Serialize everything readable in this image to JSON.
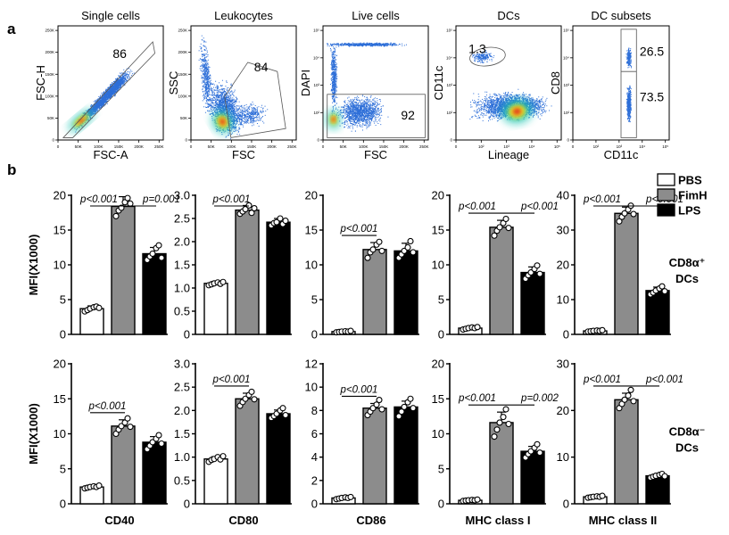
{
  "figure": {
    "panel_a_label": "a",
    "panel_b_label": "b"
  },
  "flow_panels": [
    {
      "title": "Single cells",
      "xlabel": "FSC-A",
      "ylabel": "FSC-H",
      "xscale": "linear",
      "yscale": "linear",
      "gate_value": "86",
      "x_ticks": [
        "0",
        "50K",
        "100K",
        "150K",
        "200K",
        "250K"
      ],
      "y_ticks": [
        "0",
        "50K",
        "100K",
        "150K",
        "200K",
        "250K"
      ],
      "population_color": "#2e6fd8"
    },
    {
      "title": "Leukocytes",
      "xlabel": "FSC",
      "ylabel": "SSC",
      "xscale": "linear",
      "yscale": "linear",
      "gate_value": "84",
      "x_ticks": [
        "0",
        "50K",
        "100K",
        "150K",
        "200K",
        "250K"
      ],
      "y_ticks": [
        "0",
        "50K",
        "100K",
        "150K",
        "200K",
        "250K"
      ],
      "population_color": "#2e6fd8"
    },
    {
      "title": "Live cells",
      "xlabel": "FSC",
      "ylabel": "DAPI",
      "xscale": "linear",
      "yscale": "log",
      "gate_value": "92",
      "x_ticks": [
        "0",
        "50K",
        "100K",
        "150K",
        "200K",
        "250K"
      ],
      "y_ticks": [
        "0",
        "10²",
        "10³",
        "10⁴",
        "10⁵"
      ],
      "population_color": "#2e6fd8"
    },
    {
      "title": "DCs",
      "xlabel": "Lineage",
      "ylabel": "CD11c",
      "xscale": "log",
      "yscale": "log",
      "gate_value": "1.3",
      "x_ticks": [
        "0",
        "10²",
        "10³",
        "10⁴",
        "10⁵"
      ],
      "y_ticks": [
        "0",
        "10²",
        "10³",
        "10⁴",
        "10⁵"
      ],
      "population_color": "#2e6fd8"
    },
    {
      "title": "DC subsets",
      "xlabel": "CD11c",
      "ylabel": "CD8",
      "xscale": "log",
      "yscale": "log",
      "gate_values": [
        "26.5",
        "73.5"
      ],
      "x_ticks": [
        "0",
        "10²",
        "10³",
        "10⁴",
        "10⁵"
      ],
      "y_ticks": [
        "0",
        "10²",
        "10³",
        "10⁴",
        "10⁵"
      ],
      "population_color": "#2e6fd8"
    }
  ],
  "legend": {
    "entries": [
      {
        "name": "PBS",
        "color": "#ffffff"
      },
      {
        "name": "FimH",
        "color": "#8c8c8c"
      },
      {
        "name": "LPS",
        "color": "#000000"
      }
    ],
    "placement": "top-right"
  },
  "chart_data": [
    {
      "type": "bar",
      "row": 1,
      "xlabel": "",
      "ylabel": "MFI(X1000)",
      "ylim": [
        0,
        20
      ],
      "yticks": [
        "0",
        "5",
        "10",
        "15",
        "20"
      ],
      "categories": [
        "PBS",
        "FimH",
        "LPS"
      ],
      "values": [
        3.7,
        18.4,
        11.6
      ],
      "errors": [
        0.4,
        1.4,
        0.9
      ],
      "replicates": [
        [
          3.3,
          3.5,
          3.7,
          3.9,
          4.0,
          3.8
        ],
        [
          17.0,
          17.8,
          18.2,
          19.0,
          19.6,
          18.8
        ],
        [
          10.7,
          11.2,
          11.6,
          12.4,
          12.8,
          11.0
        ]
      ],
      "annotations": [
        {
          "from": 0,
          "to": 1,
          "text": "p<0.001"
        },
        {
          "from": 1,
          "to": 2,
          "text": "p=0.001"
        }
      ]
    },
    {
      "type": "bar",
      "row": 1,
      "xlabel": "",
      "ylabel": "",
      "ylim": [
        0,
        3.0
      ],
      "yticks": [
        "0",
        "0.5",
        "1.0",
        "1.5",
        "2.0",
        "2.5",
        "3.0"
      ],
      "categories": [
        "PBS",
        "FimH",
        "LPS"
      ],
      "values": [
        1.1,
        2.68,
        2.42
      ],
      "errors": [
        0.04,
        0.1,
        0.08
      ],
      "replicates": [
        [
          1.06,
          1.08,
          1.1,
          1.12,
          1.09,
          1.13
        ],
        [
          2.6,
          2.65,
          2.7,
          2.78,
          2.62,
          2.72
        ],
        [
          2.35,
          2.4,
          2.42,
          2.5,
          2.38,
          2.45
        ]
      ],
      "annotations": [
        {
          "from": 0,
          "to": 1,
          "text": "p<0.001"
        }
      ]
    },
    {
      "type": "bar",
      "row": 1,
      "xlabel": "",
      "ylabel": "",
      "ylim": [
        0,
        20
      ],
      "yticks": [
        "0",
        "5",
        "10",
        "15",
        "20"
      ],
      "categories": [
        "PBS",
        "FimH",
        "LPS"
      ],
      "values": [
        0.4,
        12.2,
        12.0
      ],
      "errors": [
        0.1,
        1.0,
        1.1
      ],
      "replicates": [
        [
          0.3,
          0.35,
          0.4,
          0.45,
          0.4,
          0.5
        ],
        [
          11.0,
          11.8,
          12.2,
          12.9,
          13.3,
          12.0
        ],
        [
          11.0,
          11.5,
          12.0,
          12.5,
          13.4,
          11.8
        ]
      ],
      "annotations": [
        {
          "from": 0,
          "to": 1,
          "text": "p<0.001"
        }
      ]
    },
    {
      "type": "bar",
      "row": 1,
      "xlabel": "",
      "ylabel": "",
      "ylim": [
        0,
        20
      ],
      "yticks": [
        "0",
        "5",
        "10",
        "15",
        "20"
      ],
      "categories": [
        "PBS",
        "FimH",
        "LPS"
      ],
      "values": [
        0.9,
        15.4,
        8.9
      ],
      "errors": [
        0.15,
        1.0,
        0.8
      ],
      "replicates": [
        [
          0.7,
          0.8,
          0.9,
          1.0,
          0.9,
          1.05
        ],
        [
          14.2,
          14.9,
          15.4,
          16.0,
          16.6,
          15.3
        ],
        [
          8.0,
          8.5,
          8.9,
          9.4,
          9.9,
          8.7
        ]
      ],
      "annotations": [
        {
          "from": 0,
          "to": 1,
          "text": "p<0.001"
        },
        {
          "from": 1,
          "to": 2,
          "text": "p<0.001"
        }
      ]
    },
    {
      "type": "bar",
      "row": 1,
      "xlabel": "",
      "ylabel": "",
      "ylim": [
        0,
        40
      ],
      "yticks": [
        "0",
        "10",
        "20",
        "30",
        "40"
      ],
      "categories": [
        "PBS",
        "FimH",
        "LPS"
      ],
      "values": [
        1.0,
        34.8,
        12.6
      ],
      "errors": [
        0.2,
        1.8,
        1.0
      ],
      "replicates": [
        [
          0.8,
          0.9,
          1.0,
          1.1,
          1.0,
          1.2
        ],
        [
          32.5,
          33.8,
          34.8,
          35.9,
          37.0,
          34.6
        ],
        [
          11.5,
          12.0,
          12.6,
          13.2,
          13.8,
          12.4
        ]
      ],
      "annotations": [
        {
          "from": 0,
          "to": 1,
          "text": "p<0.001"
        },
        {
          "from": 1,
          "to": 2,
          "text": "p<0.001"
        }
      ],
      "row_label": [
        "CD8α⁺",
        "DCs"
      ]
    },
    {
      "type": "bar",
      "row": 2,
      "xlabel": "CD40",
      "ylabel": "MFI(X1000)",
      "ylim": [
        0,
        20
      ],
      "yticks": [
        "0",
        "5",
        "10",
        "15",
        "20"
      ],
      "categories": [
        "PBS",
        "FimH",
        "LPS"
      ],
      "values": [
        2.4,
        11.1,
        8.8
      ],
      "errors": [
        0.2,
        0.9,
        0.8
      ],
      "replicates": [
        [
          2.2,
          2.3,
          2.4,
          2.5,
          2.4,
          2.6
        ],
        [
          10.0,
          10.6,
          11.1,
          11.6,
          12.2,
          11.0
        ],
        [
          7.8,
          8.3,
          8.8,
          9.3,
          9.8,
          8.6
        ]
      ],
      "annotations": [
        {
          "from": 0,
          "to": 1,
          "text": "p<0.001"
        }
      ]
    },
    {
      "type": "bar",
      "row": 2,
      "xlabel": "CD80",
      "ylabel": "",
      "ylim": [
        0,
        3.0
      ],
      "yticks": [
        "0",
        "0.5",
        "1.0",
        "1.5",
        "2.0",
        "2.5",
        "3.0"
      ],
      "categories": [
        "PBS",
        "FimH",
        "LPS"
      ],
      "values": [
        0.96,
        2.25,
        1.93
      ],
      "errors": [
        0.05,
        0.12,
        0.08
      ],
      "replicates": [
        [
          0.9,
          0.94,
          0.96,
          1.0,
          0.95,
          1.02
        ],
        [
          2.1,
          2.18,
          2.25,
          2.33,
          2.4,
          2.24
        ],
        [
          1.84,
          1.88,
          1.93,
          2.0,
          2.05,
          1.9
        ]
      ],
      "annotations": [
        {
          "from": 0,
          "to": 1,
          "text": "p<0.001"
        }
      ]
    },
    {
      "type": "bar",
      "row": 2,
      "xlabel": "CD86",
      "ylabel": "",
      "ylim": [
        0,
        12
      ],
      "yticks": [
        "0",
        "2",
        "4",
        "6",
        "8",
        "10",
        "12"
      ],
      "categories": [
        "PBS",
        "FimH",
        "LPS"
      ],
      "values": [
        0.5,
        8.2,
        8.3
      ],
      "errors": [
        0.08,
        0.4,
        0.5
      ],
      "replicates": [
        [
          0.4,
          0.45,
          0.5,
          0.55,
          0.5,
          0.58
        ],
        [
          7.6,
          7.9,
          8.2,
          8.5,
          8.9,
          8.1
        ],
        [
          7.5,
          7.9,
          8.3,
          8.7,
          9.0,
          8.2
        ]
      ],
      "annotations": [
        {
          "from": 0,
          "to": 1,
          "text": "p<0.001"
        }
      ]
    },
    {
      "type": "bar",
      "row": 2,
      "xlabel": "MHC class I",
      "ylabel": "",
      "ylim": [
        0,
        20
      ],
      "yticks": [
        "0",
        "5",
        "10",
        "15",
        "20"
      ],
      "categories": [
        "PBS",
        "FimH",
        "LPS"
      ],
      "values": [
        0.5,
        11.6,
        7.5
      ],
      "errors": [
        0.1,
        1.5,
        0.7
      ],
      "replicates": [
        [
          0.4,
          0.45,
          0.5,
          0.55,
          0.5,
          0.6
        ],
        [
          9.6,
          10.6,
          11.6,
          12.4,
          13.5,
          11.4
        ],
        [
          6.6,
          7.1,
          7.5,
          8.0,
          8.5,
          7.3
        ]
      ],
      "annotations": [
        {
          "from": 0,
          "to": 1,
          "text": "p<0.001"
        },
        {
          "from": 1,
          "to": 2,
          "text": "p=0.002"
        }
      ]
    },
    {
      "type": "bar",
      "row": 2,
      "xlabel": "MHC class II",
      "ylabel": "",
      "ylim": [
        0,
        30
      ],
      "yticks": [
        "0",
        "10",
        "20",
        "30"
      ],
      "categories": [
        "PBS",
        "FimH",
        "LPS"
      ],
      "values": [
        1.5,
        22.3,
        6.0
      ],
      "errors": [
        0.15,
        1.4,
        0.3
      ],
      "replicates": [
        [
          1.3,
          1.4,
          1.5,
          1.6,
          1.5,
          1.7
        ],
        [
          20.5,
          21.4,
          22.3,
          23.2,
          24.4,
          22.0
        ],
        [
          5.6,
          5.8,
          6.0,
          6.2,
          6.4,
          5.9
        ]
      ],
      "annotations": [
        {
          "from": 0,
          "to": 1,
          "text": "p<0.001"
        },
        {
          "from": 1,
          "to": 2,
          "text": "p<0.001"
        }
      ],
      "row_label": [
        "CD8α⁻",
        "DCs"
      ]
    }
  ]
}
